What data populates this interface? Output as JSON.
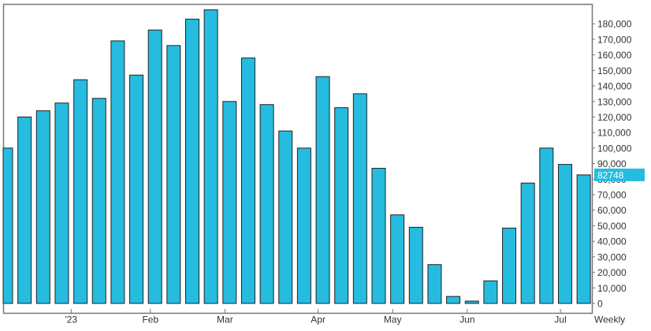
{
  "chart_data": {
    "type": "bar",
    "frequency_label": "Weekly",
    "bar_color": "#25BCE0",
    "bar_edge_color": "#222222",
    "last_value_label": "82748",
    "ylim": [
      0,
      190000
    ],
    "y_ticks": [
      0,
      10000,
      20000,
      30000,
      40000,
      50000,
      60000,
      70000,
      80000,
      90000,
      100000,
      110000,
      120000,
      130000,
      140000,
      150000,
      160000,
      170000,
      180000
    ],
    "y_tick_labels": [
      "0",
      "10,000",
      "20,000",
      "30,000",
      "40,000",
      "50,000",
      "60,000",
      "70,000",
      "80,000",
      "90,000",
      "100,000",
      "110,000",
      "120,000",
      "130,000",
      "140,000",
      "150,000",
      "160,000",
      "170,000",
      "180,000"
    ],
    "x_labels": [
      {
        "label": "'23",
        "at": 3.5
      },
      {
        "label": "Feb",
        "at": 7.75
      },
      {
        "label": "Mar",
        "at": 11.75
      },
      {
        "label": "Apr",
        "at": 16.75
      },
      {
        "label": "May",
        "at": 20.75
      },
      {
        "label": "Jun",
        "at": 24.75
      },
      {
        "label": "Jul",
        "at": 29.75
      }
    ],
    "values": [
      100000,
      120000,
      124000,
      129000,
      144000,
      132000,
      169000,
      147000,
      176000,
      166000,
      183000,
      189000,
      130000,
      158000,
      128000,
      111000,
      100000,
      146000,
      126000,
      135000,
      87000,
      57000,
      49000,
      25000,
      4500,
      1500,
      14500,
      48500,
      77500,
      100000,
      89500,
      82748
    ]
  }
}
